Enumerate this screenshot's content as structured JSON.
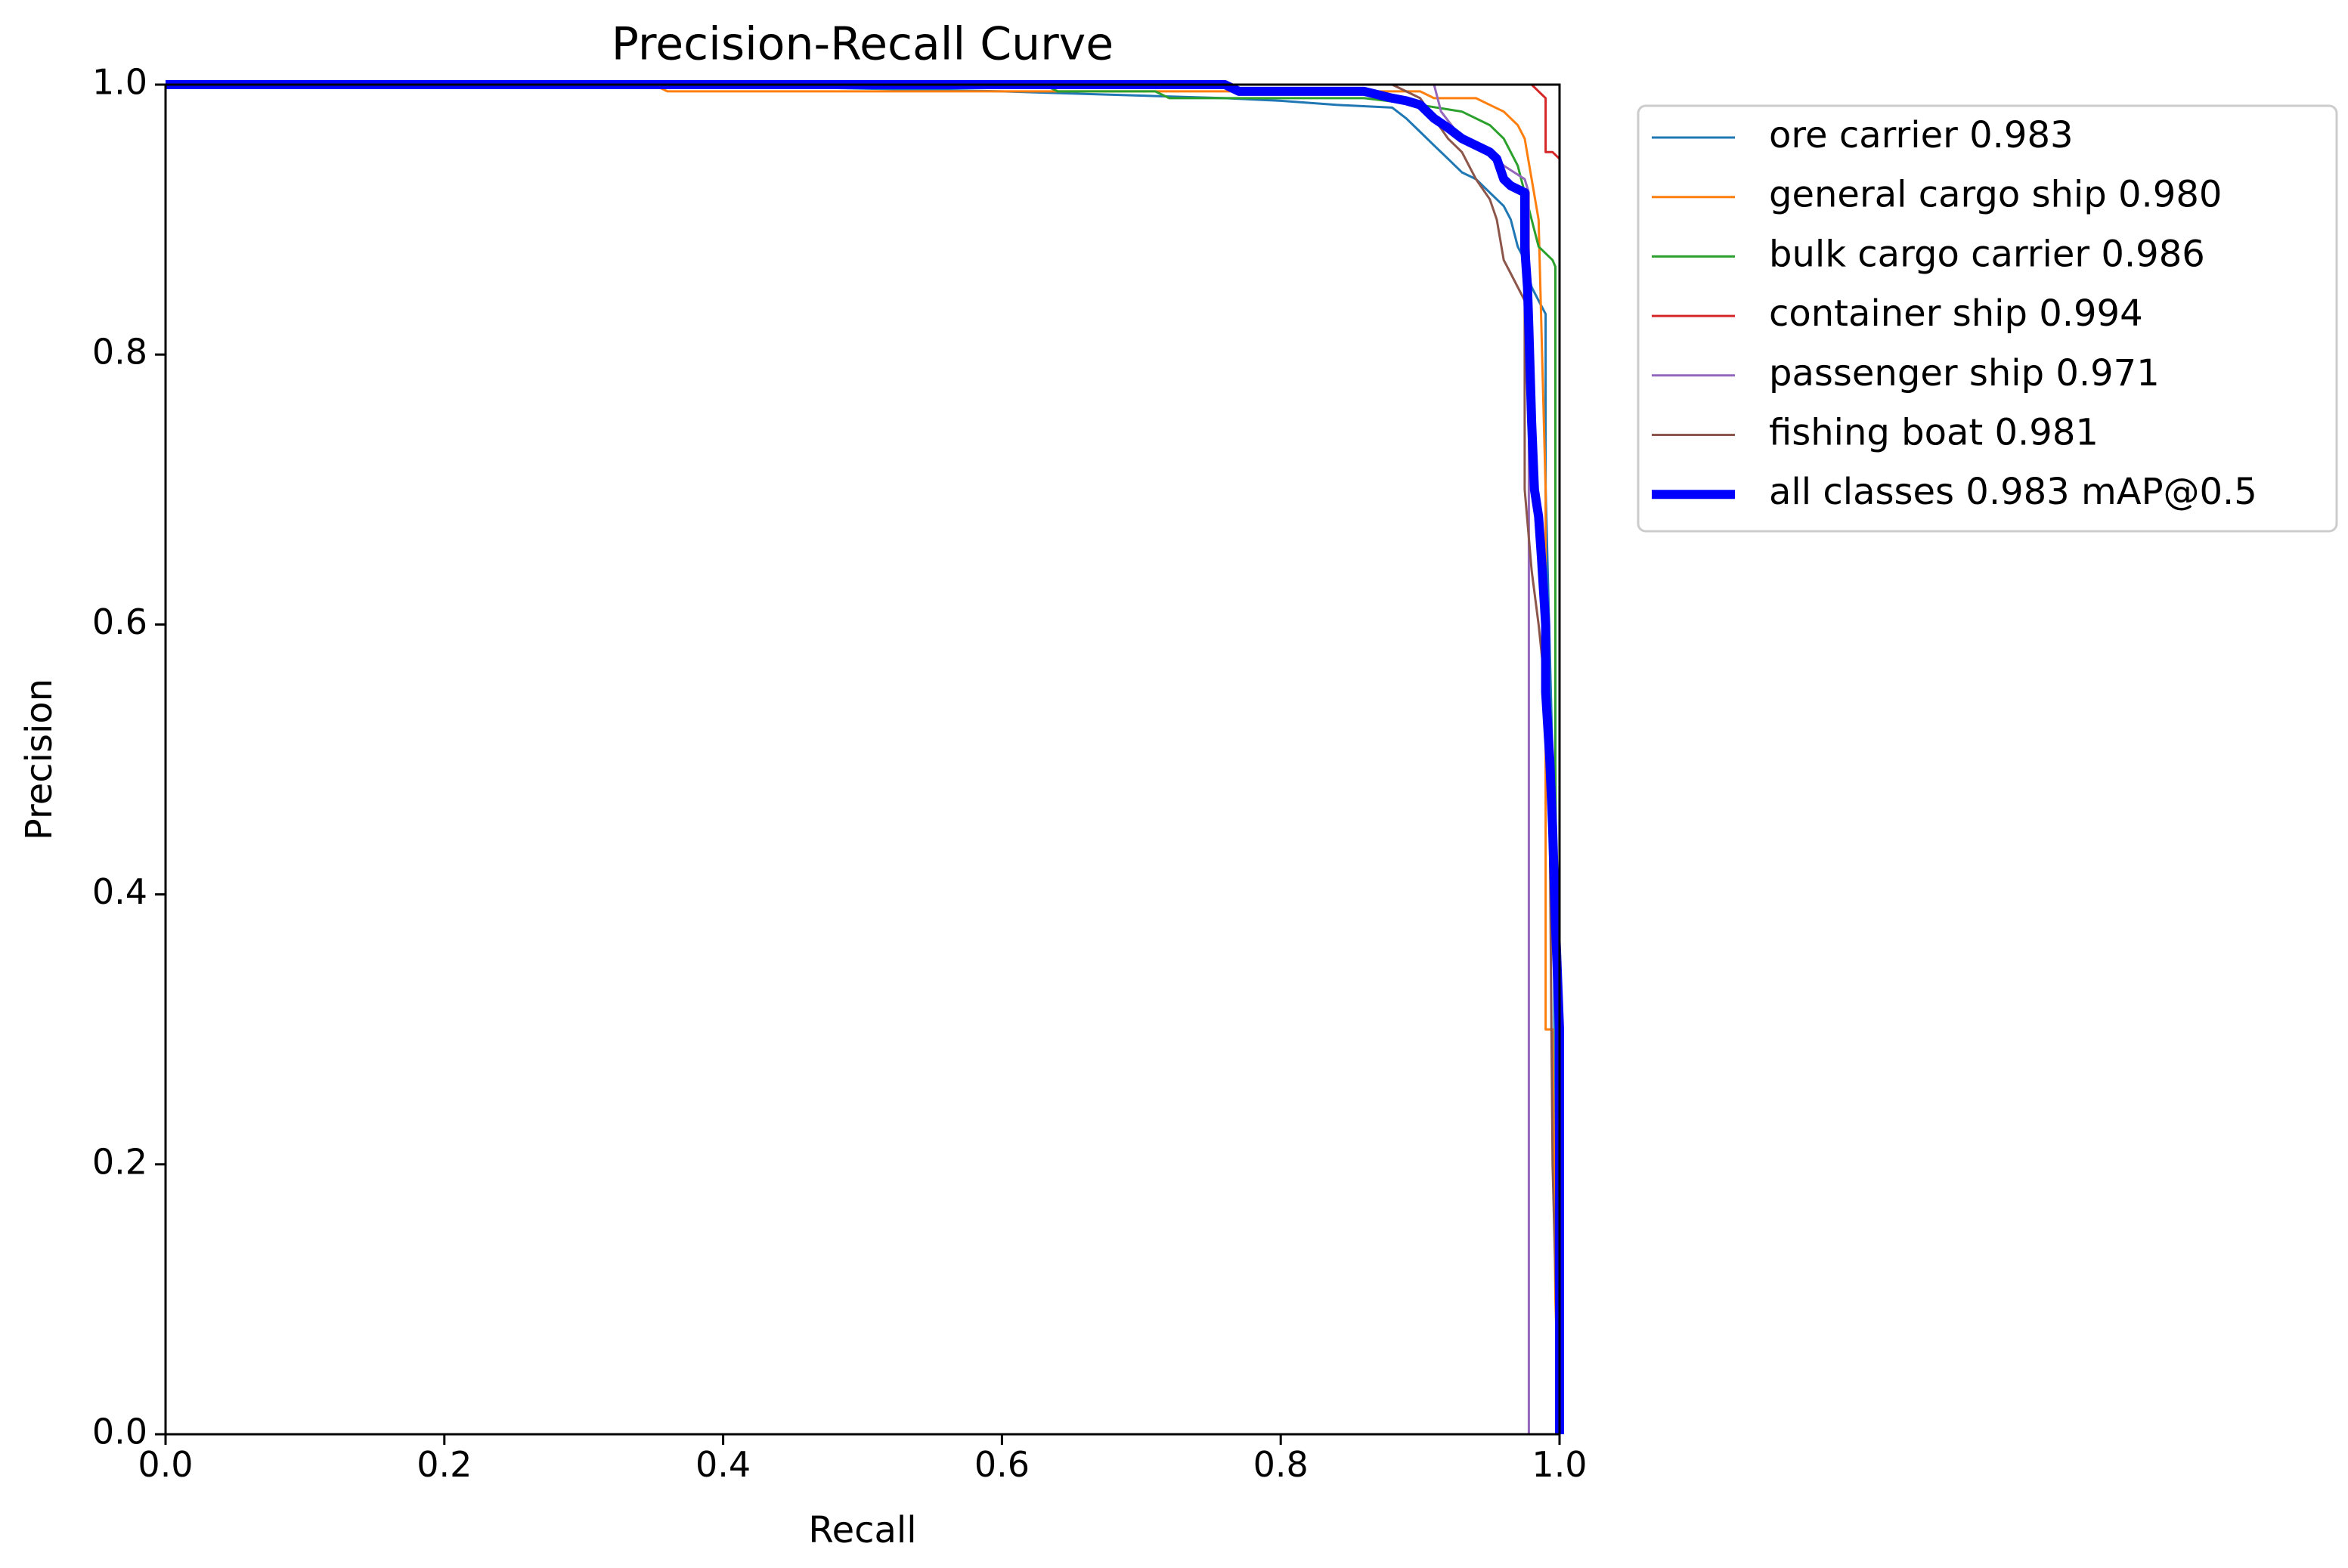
{
  "chart_data": {
    "type": "line",
    "title": "Precision-Recall Curve",
    "xlabel": "Recall",
    "ylabel": "Precision",
    "xlim": [
      0.0,
      1.0
    ],
    "ylim": [
      0.0,
      1.0
    ],
    "xticks": [
      "0.0",
      "0.2",
      "0.4",
      "0.6",
      "0.8",
      "1.0"
    ],
    "yticks": [
      "0.0",
      "0.2",
      "0.4",
      "0.6",
      "0.8",
      "1.0"
    ],
    "grid": false,
    "legend_position": "outside upper right",
    "series": [
      {
        "name": "ore carrier 0.983",
        "color": "#1f77b4",
        "line_width": "thin",
        "points": [
          [
            0.0,
            1.0
          ],
          [
            0.36,
            1.0
          ],
          [
            0.6,
            0.995
          ],
          [
            0.76,
            0.99
          ],
          [
            0.8,
            0.988
          ],
          [
            0.84,
            0.985
          ],
          [
            0.88,
            0.983
          ],
          [
            0.89,
            0.975
          ],
          [
            0.9,
            0.965
          ],
          [
            0.91,
            0.955
          ],
          [
            0.92,
            0.945
          ],
          [
            0.93,
            0.935
          ],
          [
            0.94,
            0.93
          ],
          [
            0.95,
            0.92
          ],
          [
            0.96,
            0.91
          ],
          [
            0.965,
            0.9
          ],
          [
            0.97,
            0.88
          ],
          [
            0.975,
            0.87
          ],
          [
            0.98,
            0.85
          ],
          [
            0.985,
            0.84
          ],
          [
            0.99,
            0.83
          ],
          [
            0.99,
            0.7
          ],
          [
            0.995,
            0.5
          ],
          [
            0.997,
            0.2
          ],
          [
            1.0,
            0.0
          ]
        ]
      },
      {
        "name": "general cargo ship 0.980",
        "color": "#ff7f0e",
        "line_width": "thin",
        "points": [
          [
            0.0,
            1.0
          ],
          [
            0.35,
            1.0
          ],
          [
            0.36,
            0.995
          ],
          [
            0.9,
            0.995
          ],
          [
            0.91,
            0.99
          ],
          [
            0.94,
            0.99
          ],
          [
            0.95,
            0.985
          ],
          [
            0.96,
            0.98
          ],
          [
            0.97,
            0.97
          ],
          [
            0.975,
            0.96
          ],
          [
            0.98,
            0.93
          ],
          [
            0.985,
            0.9
          ],
          [
            0.99,
            0.7
          ],
          [
            0.99,
            0.3
          ],
          [
            0.995,
            0.3
          ],
          [
            0.997,
            0.1
          ],
          [
            1.0,
            0.0
          ]
        ]
      },
      {
        "name": "bulk cargo carrier 0.986",
        "color": "#2ca02c",
        "line_width": "thin",
        "points": [
          [
            0.0,
            1.0
          ],
          [
            0.63,
            1.0
          ],
          [
            0.64,
            0.995
          ],
          [
            0.71,
            0.995
          ],
          [
            0.72,
            0.99
          ],
          [
            0.86,
            0.99
          ],
          [
            0.9,
            0.985
          ],
          [
            0.93,
            0.98
          ],
          [
            0.95,
            0.97
          ],
          [
            0.96,
            0.96
          ],
          [
            0.97,
            0.94
          ],
          [
            0.975,
            0.92
          ],
          [
            0.98,
            0.9
          ],
          [
            0.985,
            0.88
          ],
          [
            0.99,
            0.875
          ],
          [
            0.995,
            0.87
          ],
          [
            0.997,
            0.865
          ],
          [
            0.997,
            0.5
          ],
          [
            1.0,
            0.0
          ]
        ]
      },
      {
        "name": "container ship 0.994",
        "color": "#d62728",
        "line_width": "thin",
        "points": [
          [
            0.0,
            1.0
          ],
          [
            0.98,
            1.0
          ],
          [
            0.985,
            0.995
          ],
          [
            0.99,
            0.99
          ],
          [
            0.99,
            0.95
          ],
          [
            0.995,
            0.95
          ],
          [
            1.0,
            0.945
          ],
          [
            1.0,
            0.6
          ],
          [
            1.0,
            0.0
          ]
        ]
      },
      {
        "name": "passenger ship 0.971",
        "color": "#9467bd",
        "line_width": "thin",
        "points": [
          [
            0.0,
            1.0
          ],
          [
            0.91,
            1.0
          ],
          [
            0.915,
            0.98
          ],
          [
            0.93,
            0.96
          ],
          [
            0.95,
            0.95
          ],
          [
            0.96,
            0.94
          ],
          [
            0.975,
            0.93
          ],
          [
            0.978,
            0.92
          ],
          [
            0.978,
            0.7
          ],
          [
            0.978,
            0.0
          ],
          [
            0.99,
            0.0
          ]
        ]
      },
      {
        "name": "fishing boat 0.981",
        "color": "#8c564b",
        "line_width": "thin",
        "points": [
          [
            0.0,
            1.0
          ],
          [
            0.88,
            1.0
          ],
          [
            0.89,
            0.995
          ],
          [
            0.9,
            0.99
          ],
          [
            0.91,
            0.975
          ],
          [
            0.92,
            0.96
          ],
          [
            0.93,
            0.95
          ],
          [
            0.94,
            0.93
          ],
          [
            0.95,
            0.915
          ],
          [
            0.955,
            0.9
          ],
          [
            0.96,
            0.87
          ],
          [
            0.965,
            0.86
          ],
          [
            0.97,
            0.85
          ],
          [
            0.975,
            0.84
          ],
          [
            0.975,
            0.7
          ],
          [
            0.98,
            0.64
          ],
          [
            0.985,
            0.6
          ],
          [
            0.99,
            0.55
          ],
          [
            0.993,
            0.45
          ],
          [
            0.995,
            0.2
          ],
          [
            1.0,
            0.0
          ]
        ]
      },
      {
        "name": "all classes 0.983 mAP@0.5",
        "color": "#0000ff",
        "line_width": "thick",
        "points": [
          [
            0.0,
            1.0
          ],
          [
            0.76,
            1.0
          ],
          [
            0.77,
            0.995
          ],
          [
            0.86,
            0.995
          ],
          [
            0.88,
            0.99
          ],
          [
            0.89,
            0.988
          ],
          [
            0.9,
            0.985
          ],
          [
            0.91,
            0.975
          ],
          [
            0.92,
            0.968
          ],
          [
            0.93,
            0.96
          ],
          [
            0.94,
            0.955
          ],
          [
            0.95,
            0.95
          ],
          [
            0.955,
            0.945
          ],
          [
            0.96,
            0.93
          ],
          [
            0.965,
            0.925
          ],
          [
            0.975,
            0.92
          ],
          [
            0.975,
            0.88
          ],
          [
            0.977,
            0.85
          ],
          [
            0.978,
            0.82
          ],
          [
            0.98,
            0.75
          ],
          [
            0.982,
            0.7
          ],
          [
            0.985,
            0.68
          ],
          [
            0.987,
            0.65
          ],
          [
            0.99,
            0.6
          ],
          [
            0.99,
            0.55
          ],
          [
            0.993,
            0.5
          ],
          [
            0.995,
            0.45
          ],
          [
            0.997,
            0.38
          ],
          [
            1.0,
            0.3
          ],
          [
            1.0,
            0.0
          ]
        ]
      }
    ]
  }
}
